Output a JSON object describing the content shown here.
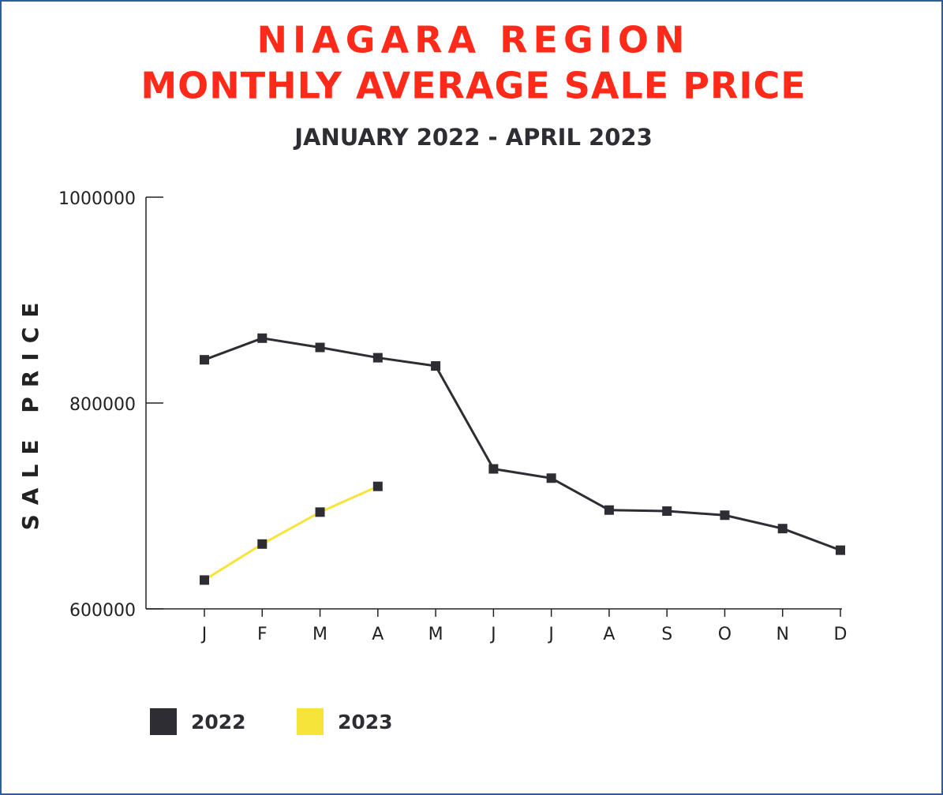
{
  "chart_data": {
    "type": "line",
    "title": [
      "NIAGARA REGION",
      "MONTHLY AVERAGE SALE PRICE"
    ],
    "subtitle": "JANUARY 2022 - APRIL 2023",
    "y_label": "SALE PRICE",
    "categories": [
      "J",
      "F",
      "M",
      "A",
      "M",
      "J",
      "J",
      "A",
      "S",
      "O",
      "N",
      "D"
    ],
    "series": [
      {
        "name": "2022",
        "color": "#2d2d33",
        "values": [
          842000,
          863000,
          854000,
          844000,
          836000,
          736000,
          727000,
          696000,
          695000,
          691000,
          678000,
          657000
        ]
      },
      {
        "name": "2023",
        "color": "#f7e43a",
        "values": [
          628000,
          663000,
          694000,
          719000,
          null,
          null,
          null,
          null,
          null,
          null,
          null,
          null
        ]
      }
    ],
    "ylim": [
      600000,
      1000000
    ],
    "yticks": [
      600000,
      800000,
      1000000
    ],
    "legend": "bottom-left"
  }
}
